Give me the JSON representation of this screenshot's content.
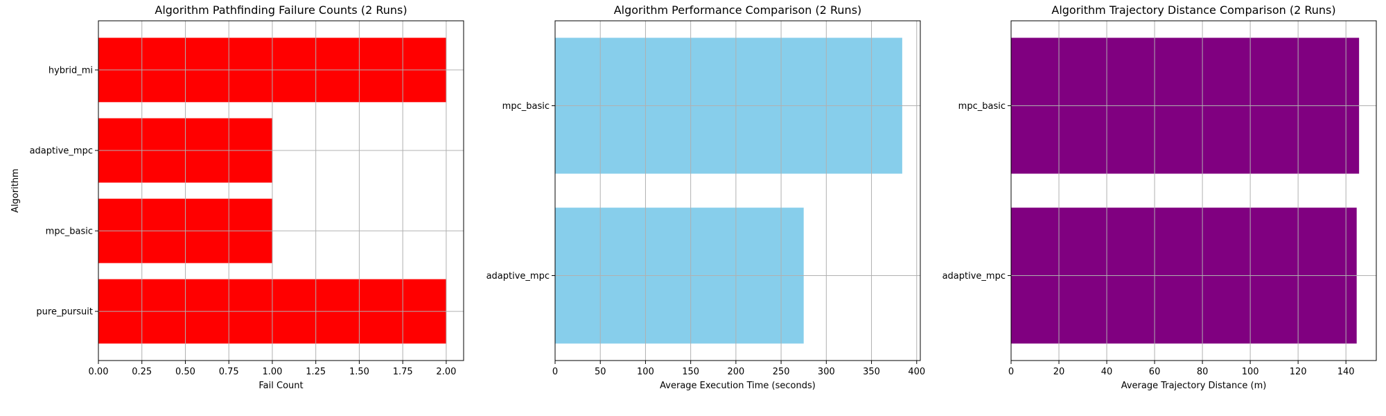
{
  "chart_data": [
    {
      "type": "bar",
      "orientation": "horizontal",
      "title": "Algorithm Pathfinding Failure Counts (2 Runs)",
      "xlabel": "Fail Count",
      "ylabel": "Algorithm",
      "categories": [
        "pure_pursuit",
        "mpc_basic",
        "adaptive_mpc",
        "hybrid_mi"
      ],
      "values": [
        2,
        1,
        1,
        2
      ],
      "xlim": [
        0,
        2.1
      ],
      "xticks": [
        "0.00",
        "0.25",
        "0.50",
        "0.75",
        "1.00",
        "1.25",
        "1.50",
        "1.75",
        "2.00"
      ],
      "color": "#ff0000",
      "grid": true
    },
    {
      "type": "bar",
      "orientation": "horizontal",
      "title": "Algorithm Performance Comparison (2 Runs)",
      "xlabel": "Average Execution Time (seconds)",
      "ylabel": "",
      "categories": [
        "adaptive_mpc",
        "mpc_basic"
      ],
      "values": [
        275,
        384
      ],
      "xlim": [
        0,
        404
      ],
      "xticks": [
        "0",
        "50",
        "100",
        "150",
        "200",
        "250",
        "300",
        "350",
        "400"
      ],
      "color": "#87ceeb",
      "grid": true
    },
    {
      "type": "bar",
      "orientation": "horizontal",
      "title": "Algorithm Trajectory Distance Comparison (2 Runs)",
      "xlabel": "Average Trajectory Distance (m)",
      "ylabel": "",
      "categories": [
        "adaptive_mpc",
        "mpc_basic"
      ],
      "values": [
        144.5,
        145.5
      ],
      "xlim": [
        0,
        152.7
      ],
      "xticks": [
        "0",
        "20",
        "40",
        "60",
        "80",
        "100",
        "120",
        "140"
      ],
      "color": "#800080",
      "grid": true
    }
  ]
}
